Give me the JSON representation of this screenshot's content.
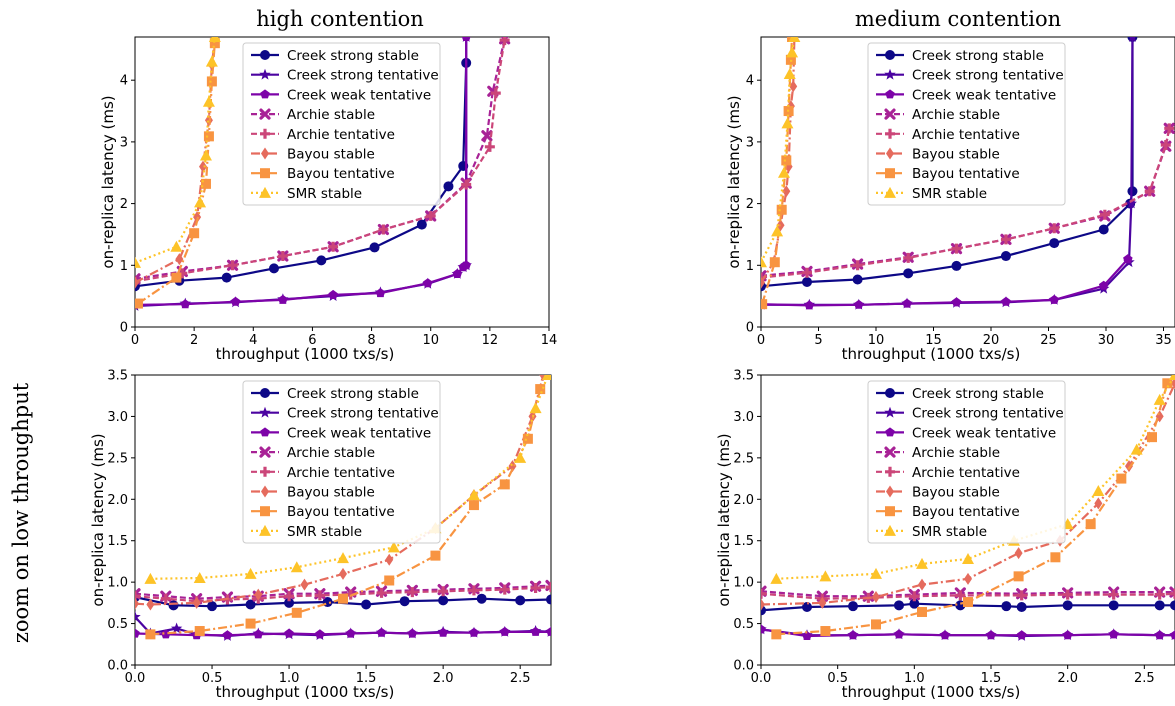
{
  "figure": {
    "titles": [
      "high contention",
      "medium contention"
    ],
    "row_label": "zoom on low throughput"
  },
  "styles": [
    {
      "name": "Creek strong stable",
      "color": "#0d0887",
      "dash": "",
      "marker": "circle"
    },
    {
      "name": "Creek strong tentative",
      "color": "#4b03a1",
      "dash": "",
      "marker": "star"
    },
    {
      "name": "Creek weak tentative",
      "color": "#7d03a8",
      "dash": "",
      "marker": "pentagon"
    },
    {
      "name": "Archie stable",
      "color": "#a82296",
      "dash": "6,3",
      "marker": "x"
    },
    {
      "name": "Archie tentative",
      "color": "#cb4679",
      "dash": "6,3",
      "marker": "plus"
    },
    {
      "name": "Bayou stable",
      "color": "#e56b5d",
      "dash": "9,3,2,3",
      "marker": "diamond"
    },
    {
      "name": "Bayou tentative",
      "color": "#f89441",
      "dash": "9,3,2,3",
      "marker": "square"
    },
    {
      "name": "SMR stable",
      "color": "#fdc328",
      "dash": "2,3",
      "marker": "triangle"
    }
  ],
  "chart_data": [
    {
      "type": "line",
      "title": "high contention",
      "xlabel": "throughput (1000 txs/s)",
      "ylabel": "on-replica latency (ms)",
      "xlim": [
        0,
        14
      ],
      "ylim": [
        0,
        4.7
      ],
      "xticks": [
        "0",
        "2",
        "4",
        "6",
        "8",
        "10",
        "12",
        "14"
      ],
      "yticks": [
        "0",
        "1",
        "2",
        "3",
        "4"
      ],
      "xtick_values": [
        0,
        2,
        4,
        6,
        8,
        10,
        12,
        14
      ],
      "ytick_values": [
        0,
        1,
        2,
        3,
        4
      ],
      "legend": "top-center",
      "series": [
        {
          "name": "Creek strong stable",
          "x": [
            0,
            1.5,
            3.1,
            4.7,
            6.3,
            8.1,
            9.7,
            10.6,
            11.1,
            11.2
          ],
          "y": [
            0.66,
            0.75,
            0.8,
            0.95,
            1.08,
            1.29,
            1.66,
            2.28,
            2.61,
            4.28
          ]
        },
        {
          "name": "Creek strong tentative",
          "x": [
            0,
            1.7,
            3.4,
            5,
            6.7,
            8.3,
            9.9,
            10.9,
            11.1,
            11.2,
            11.2
          ],
          "y": [
            0.34,
            0.38,
            0.4,
            0.45,
            0.5,
            0.56,
            0.7,
            0.86,
            0.97,
            1.0,
            4.7
          ]
        },
        {
          "name": "Creek weak tentative",
          "x": [
            0,
            1.7,
            3.4,
            5,
            6.7,
            8.3,
            9.9,
            10.9,
            11.1,
            11.2,
            11.2
          ],
          "y": [
            0.36,
            0.37,
            0.41,
            0.44,
            0.52,
            0.55,
            0.71,
            0.86,
            0.97,
            1.0,
            4.7
          ]
        },
        {
          "name": "Archie stable",
          "x": [
            0,
            1.6,
            3.3,
            5,
            6.7,
            8.4,
            10,
            11.2,
            11.9,
            12.1,
            12.5
          ],
          "y": [
            0.78,
            0.9,
            1.0,
            1.15,
            1.3,
            1.58,
            1.8,
            2.33,
            3.1,
            3.82,
            4.67
          ]
        },
        {
          "name": "Archie tentative",
          "x": [
            0,
            1.6,
            3.3,
            5,
            6.7,
            8.4,
            10,
            11.2,
            12,
            12.2,
            12.5
          ],
          "y": [
            0.74,
            0.87,
            1.0,
            1.15,
            1.3,
            1.58,
            1.8,
            2.31,
            2.92,
            3.79,
            4.65
          ]
        },
        {
          "name": "Bayou stable",
          "x": [
            0,
            1.5,
            2.1,
            2.3,
            2.5,
            2.6,
            2.7
          ],
          "y": [
            0.72,
            1.1,
            1.78,
            2.6,
            3.35,
            4.25,
            4.65
          ]
        },
        {
          "name": "Bayou tentative",
          "x": [
            0.1,
            1.4,
            2.0,
            2.4,
            2.5,
            2.6,
            2.7
          ],
          "y": [
            0.38,
            0.8,
            1.52,
            2.32,
            3.09,
            3.98,
            4.6
          ]
        },
        {
          "name": "SMR stable",
          "x": [
            0,
            1.4,
            2.2,
            2.4,
            2.5,
            2.6,
            2.7
          ],
          "y": [
            1.04,
            1.3,
            2.02,
            2.78,
            3.65,
            4.3,
            4.7
          ]
        }
      ]
    },
    {
      "type": "line",
      "title": "medium contention",
      "xlabel": "throughput (1000 txs/s)",
      "ylabel": "on-replica latency (ms)",
      "xlim": [
        0,
        36
      ],
      "ylim": [
        0,
        4.7
      ],
      "xticks": [
        "0",
        "5",
        "10",
        "15",
        "20",
        "25",
        "30",
        "35"
      ],
      "yticks": [
        "0",
        "1",
        "2",
        "3",
        "4"
      ],
      "xtick_values": [
        0,
        5,
        10,
        15,
        20,
        25,
        30,
        35
      ],
      "ytick_values": [
        0,
        1,
        2,
        3,
        4
      ],
      "legend": "top-center",
      "series": [
        {
          "name": "Creek strong stable",
          "x": [
            0,
            4,
            8.4,
            12.8,
            17,
            21.3,
            25.5,
            29.8,
            32.1,
            32.3,
            32.3
          ],
          "y": [
            0.66,
            0.73,
            0.77,
            0.87,
            0.99,
            1.15,
            1.36,
            1.58,
            2.0,
            2.2,
            4.7
          ]
        },
        {
          "name": "Creek strong tentative",
          "x": [
            0,
            4.2,
            8.5,
            12.7,
            17,
            21.3,
            25.5,
            29.8,
            32,
            32.2,
            32.3
          ],
          "y": [
            0.36,
            0.36,
            0.36,
            0.38,
            0.39,
            0.4,
            0.44,
            0.62,
            1.05,
            2.0,
            4.7
          ]
        },
        {
          "name": "Creek weak tentative",
          "x": [
            0,
            4.2,
            8.5,
            12.7,
            17,
            21.3,
            25.5,
            29.8,
            31.9
          ],
          "y": [
            0.37,
            0.35,
            0.36,
            0.38,
            0.4,
            0.41,
            0.44,
            0.67,
            1.1
          ]
        },
        {
          "name": "Archie stable",
          "x": [
            0,
            4,
            8.4,
            12.8,
            17,
            21.3,
            25.5,
            29.9,
            33.8,
            35.2,
            35.5
          ],
          "y": [
            0.83,
            0.9,
            1.02,
            1.13,
            1.27,
            1.42,
            1.6,
            1.8,
            2.2,
            2.93,
            3.22
          ]
        },
        {
          "name": "Archie tentative",
          "x": [
            0,
            4,
            8.4,
            12.8,
            17,
            21.3,
            25.5,
            29.9,
            33.8,
            35.2,
            35.5
          ],
          "y": [
            0.8,
            0.88,
            1.0,
            1.12,
            1.27,
            1.42,
            1.6,
            1.82,
            2.2,
            2.95,
            3.22
          ]
        },
        {
          "name": "Bayou stable",
          "x": [
            0,
            1.1,
            1.7,
            2.2,
            2.4,
            2.6,
            2.8,
            2.9
          ],
          "y": [
            0.72,
            1.05,
            1.65,
            2.2,
            2.6,
            3.58,
            3.9,
            4.7
          ]
        },
        {
          "name": "Bayou tentative",
          "x": [
            0.1,
            1.2,
            1.8,
            2.2,
            2.4,
            2.6,
            2.7,
            2.9
          ],
          "y": [
            0.37,
            1.05,
            1.9,
            2.7,
            3.5,
            4.33,
            4.7,
            4.7
          ]
        },
        {
          "name": "SMR stable",
          "x": [
            0,
            1.4,
            2.0,
            2.3,
            2.5,
            2.7,
            2.9
          ],
          "y": [
            1.05,
            1.55,
            2.5,
            3.3,
            4.1,
            4.45,
            4.7
          ]
        }
      ]
    },
    {
      "type": "line",
      "title": "",
      "xlabel": "throughput (1000 txs/s)",
      "ylabel": "on-replica latency (ms)",
      "xlim": [
        0,
        2.7
      ],
      "ylim": [
        0,
        3.5
      ],
      "xticks": [
        "0.0",
        "0.5",
        "1.0",
        "1.5",
        "2.0",
        "2.5"
      ],
      "yticks": [
        "0.0",
        "0.5",
        "1.0",
        "1.5",
        "2.0",
        "2.5",
        "3.0",
        "3.5"
      ],
      "xtick_values": [
        0,
        0.5,
        1,
        1.5,
        2,
        2.5
      ],
      "ytick_values": [
        0,
        0.5,
        1,
        1.5,
        2,
        2.5,
        3,
        3.5
      ],
      "legend": "top-center",
      "series": [
        {
          "name": "Creek strong stable",
          "x": [
            0,
            0.25,
            0.5,
            0.75,
            1.0,
            1.25,
            1.5,
            1.75,
            2.0,
            2.25,
            2.5,
            2.7
          ],
          "y": [
            0.82,
            0.72,
            0.71,
            0.73,
            0.75,
            0.76,
            0.73,
            0.77,
            0.78,
            0.8,
            0.78,
            0.79
          ]
        },
        {
          "name": "Creek strong tentative",
          "x": [
            0,
            0.1,
            0.27,
            0.4,
            0.6,
            0.8,
            1.0,
            1.2,
            1.4,
            1.6,
            1.8,
            2.0,
            2.2,
            2.4,
            2.6,
            2.7
          ],
          "y": [
            0.58,
            0.38,
            0.44,
            0.37,
            0.35,
            0.38,
            0.37,
            0.36,
            0.38,
            0.39,
            0.38,
            0.4,
            0.39,
            0.4,
            0.41,
            0.4
          ]
        },
        {
          "name": "Creek weak tentative",
          "x": [
            0,
            0.2,
            0.4,
            0.6,
            0.8,
            1.0,
            1.2,
            1.4,
            1.6,
            1.8,
            2.0,
            2.2,
            2.4,
            2.6,
            2.7
          ],
          "y": [
            0.38,
            0.37,
            0.36,
            0.36,
            0.37,
            0.38,
            0.37,
            0.38,
            0.39,
            0.38,
            0.39,
            0.39,
            0.4,
            0.4,
            0.4
          ]
        },
        {
          "name": "Archie stable",
          "x": [
            0,
            0.2,
            0.4,
            0.6,
            0.8,
            1.0,
            1.2,
            1.4,
            1.6,
            1.8,
            2.0,
            2.2,
            2.4,
            2.6,
            2.7
          ],
          "y": [
            0.86,
            0.83,
            0.8,
            0.82,
            0.83,
            0.86,
            0.86,
            0.88,
            0.89,
            0.9,
            0.91,
            0.92,
            0.93,
            0.95,
            0.96
          ]
        },
        {
          "name": "Archie tentative",
          "x": [
            0,
            0.2,
            0.4,
            0.6,
            0.8,
            1.0,
            1.2,
            1.4,
            1.6,
            1.8,
            2.0,
            2.2,
            2.4,
            2.6,
            2.7
          ],
          "y": [
            0.83,
            0.8,
            0.77,
            0.79,
            0.8,
            0.83,
            0.84,
            0.85,
            0.87,
            0.88,
            0.89,
            0.9,
            0.91,
            0.93,
            0.94
          ]
        },
        {
          "name": "Bayou stable",
          "x": [
            0,
            0.1,
            0.4,
            0.8,
            1.1,
            1.35,
            1.65,
            1.95,
            2.2,
            2.45,
            2.58,
            2.65
          ],
          "y": [
            0.74,
            0.73,
            0.75,
            0.85,
            0.97,
            1.1,
            1.27,
            1.65,
            2.05,
            2.4,
            3.0,
            3.5
          ]
        },
        {
          "name": "Bayou tentative",
          "x": [
            0.1,
            0.42,
            0.75,
            1.05,
            1.35,
            1.65,
            1.95,
            2.2,
            2.4,
            2.55,
            2.63
          ],
          "y": [
            0.37,
            0.41,
            0.5,
            0.63,
            0.8,
            1.02,
            1.32,
            1.93,
            2.18,
            2.73,
            3.33
          ]
        },
        {
          "name": "SMR stable",
          "x": [
            0.1,
            0.42,
            0.75,
            1.05,
            1.35,
            1.68,
            1.95,
            2.2,
            2.5,
            2.6,
            2.68
          ],
          "y": [
            1.04,
            1.05,
            1.1,
            1.18,
            1.29,
            1.42,
            1.65,
            2.05,
            2.5,
            3.1,
            3.5
          ]
        }
      ]
    },
    {
      "type": "line",
      "title": "",
      "xlabel": "throughput (1000 txs/s)",
      "ylabel": "on-replica latency (ms)",
      "xlim": [
        0,
        2.7
      ],
      "ylim": [
        0,
        3.5
      ],
      "xticks": [
        "0.0",
        "0.5",
        "1.0",
        "1.5",
        "2.0",
        "2.5"
      ],
      "yticks": [
        "0.0",
        "0.5",
        "1.0",
        "1.5",
        "2.0",
        "2.5",
        "3.0",
        "3.5"
      ],
      "xtick_values": [
        0,
        0.5,
        1,
        1.5,
        2,
        2.5
      ],
      "ytick_values": [
        0,
        0.5,
        1,
        1.5,
        2,
        2.5,
        3,
        3.5
      ],
      "legend": "top-center",
      "series": [
        {
          "name": "Creek strong stable",
          "x": [
            0,
            0.3,
            0.6,
            0.9,
            1.0,
            1.3,
            1.6,
            1.7,
            2.0,
            2.3,
            2.6,
            2.7
          ],
          "y": [
            0.66,
            0.7,
            0.71,
            0.72,
            0.74,
            0.72,
            0.71,
            0.7,
            0.72,
            0.72,
            0.72,
            0.72
          ]
        },
        {
          "name": "Creek strong tentative",
          "x": [
            0,
            0.3,
            0.6,
            0.9,
            1.2,
            1.5,
            1.7,
            2.0,
            2.3,
            2.6,
            2.7
          ],
          "y": [
            0.43,
            0.36,
            0.36,
            0.37,
            0.36,
            0.36,
            0.35,
            0.36,
            0.37,
            0.36,
            0.36
          ]
        },
        {
          "name": "Creek weak tentative",
          "x": [
            0,
            0.3,
            0.6,
            0.9,
            1.2,
            1.5,
            1.7,
            2.0,
            2.3,
            2.6,
            2.7
          ],
          "y": [
            0.43,
            0.35,
            0.36,
            0.37,
            0.36,
            0.36,
            0.36,
            0.36,
            0.37,
            0.36,
            0.36
          ]
        },
        {
          "name": "Archie stable",
          "x": [
            0,
            0.4,
            0.7,
            1.0,
            1.3,
            1.7,
            2.0,
            2.3,
            2.6,
            2.7
          ],
          "y": [
            0.89,
            0.83,
            0.83,
            0.85,
            0.87,
            0.86,
            0.87,
            0.88,
            0.88,
            0.88
          ]
        },
        {
          "name": "Archie tentative",
          "x": [
            0,
            0.4,
            0.7,
            1.0,
            1.3,
            1.7,
            2.0,
            2.3,
            2.6,
            2.7
          ],
          "y": [
            0.86,
            0.8,
            0.81,
            0.83,
            0.84,
            0.84,
            0.85,
            0.85,
            0.85,
            0.86
          ]
        },
        {
          "name": "Bayou stable",
          "x": [
            0,
            0.4,
            0.75,
            1.05,
            1.35,
            1.68,
            1.95,
            2.2,
            2.4,
            2.6,
            2.7
          ],
          "y": [
            0.73,
            0.75,
            0.82,
            0.97,
            1.04,
            1.35,
            1.5,
            1.95,
            2.4,
            3.0,
            3.4
          ]
        },
        {
          "name": "Bayou tentative",
          "x": [
            0.1,
            0.42,
            0.75,
            1.05,
            1.35,
            1.68,
            1.92,
            2.15,
            2.35,
            2.55,
            2.65
          ],
          "y": [
            0.37,
            0.41,
            0.49,
            0.64,
            0.76,
            1.07,
            1.3,
            1.7,
            2.25,
            2.75,
            3.4
          ]
        },
        {
          "name": "SMR stable",
          "x": [
            0.1,
            0.42,
            0.75,
            1.05,
            1.35,
            1.65,
            2.0,
            2.2,
            2.45,
            2.6,
            2.7
          ],
          "y": [
            1.04,
            1.07,
            1.1,
            1.22,
            1.28,
            1.5,
            1.7,
            2.1,
            2.6,
            3.2,
            3.5
          ]
        }
      ]
    }
  ]
}
